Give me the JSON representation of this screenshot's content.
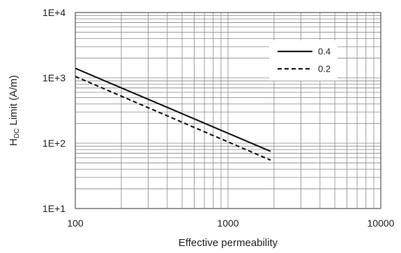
{
  "chart_data": {
    "type": "line",
    "title": "",
    "xlabel": "Effective permeability",
    "ylabel": {
      "main": "H",
      "subscript": "DC",
      "rest": " Limit (A/m)"
    },
    "x_scale": "log",
    "y_scale": "log",
    "xlim": [
      100,
      10000
    ],
    "ylim": [
      10,
      10000
    ],
    "x_ticks": [
      {
        "value": 100,
        "label": "100"
      },
      {
        "value": 1000,
        "label": "1000"
      },
      {
        "value": 10000,
        "label": "10000"
      }
    ],
    "y_ticks": [
      {
        "value": 10,
        "label": "1E+1"
      },
      {
        "value": 100,
        "label": "1E+2"
      },
      {
        "value": 1000,
        "label": "1E+3"
      },
      {
        "value": 10000,
        "label": "1E+4"
      }
    ],
    "grid": true,
    "legend_position": "top-right",
    "series": [
      {
        "name": "0.4",
        "style": "solid",
        "color": "#1a1a1a",
        "points": [
          [
            100,
            1400
          ],
          [
            1900,
            75
          ]
        ]
      },
      {
        "name": "0.2",
        "style": "dashed",
        "color": "#1a1a1a",
        "points": [
          [
            100,
            1050
          ],
          [
            1900,
            55
          ]
        ]
      }
    ]
  }
}
